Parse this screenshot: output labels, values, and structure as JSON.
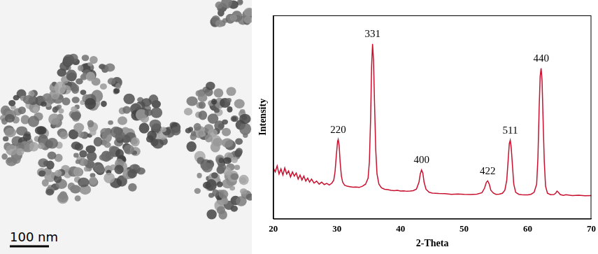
{
  "micrograph": {
    "scale_bar": "100 nm"
  },
  "chart_data": {
    "type": "line",
    "x_label": "2-Theta",
    "y_label": "Intensity",
    "color": "#c8102e",
    "xlim": [
      20,
      70
    ],
    "xticks": [
      20,
      30,
      40,
      50,
      60,
      70
    ],
    "ylim": [
      0,
      100
    ],
    "grid": false,
    "tick_labels": "x",
    "x": [
      20,
      20.3,
      20.6,
      20.9,
      21.2,
      21.5,
      21.8,
      22.1,
      22.4,
      22.7,
      23,
      23.3,
      23.6,
      23.9,
      24.2,
      24.5,
      24.8,
      25.1,
      25.4,
      25.7,
      26,
      26.4,
      26.8,
      27.2,
      27.6,
      28,
      28.4,
      28.8,
      29.2,
      29.5,
      29.7,
      29.9,
      30.1,
      30.2,
      30.35,
      30.5,
      30.7,
      30.9,
      31.2,
      31.6,
      32,
      32.5,
      33,
      33.5,
      34,
      34.5,
      34.9,
      35.1,
      35.3,
      35.45,
      35.6,
      35.75,
      35.9,
      36.1,
      36.3,
      36.6,
      37,
      37.5,
      38,
      38.5,
      39,
      39.5,
      40,
      40.5,
      41,
      41.5,
      42,
      42.5,
      42.9,
      43.1,
      43.3,
      43.5,
      43.7,
      44,
      44.5,
      45,
      46,
      47,
      48,
      49,
      50,
      51,
      52,
      52.8,
      53.2,
      53.5,
      53.7,
      53.95,
      54.2,
      54.6,
      55,
      55.5,
      56,
      56.4,
      56.7,
      56.9,
      57.1,
      57.25,
      57.4,
      57.6,
      57.8,
      58.1,
      58.6,
      59,
      59.5,
      60,
      60.5,
      61,
      61.4,
      61.6,
      61.8,
      61.95,
      62.1,
      62.25,
      62.4,
      62.6,
      62.8,
      63.1,
      63.6,
      64.1,
      64.4,
      64.6,
      64.8,
      65.1,
      65.6,
      66,
      67,
      68,
      69,
      70
    ],
    "values": [
      25,
      23,
      26,
      22,
      24.5,
      21.5,
      25,
      22,
      23.5,
      20.5,
      23,
      21,
      22.5,
      19.5,
      21.5,
      19,
      21,
      18.5,
      20,
      18,
      19.5,
      17.5,
      18.5,
      17,
      18,
      16.8,
      17.4,
      16.6,
      17.5,
      19,
      23,
      31,
      38,
      39,
      36,
      28,
      21,
      18,
      16.5,
      16,
      15.8,
      15.5,
      15.6,
      15.4,
      16,
      17,
      20,
      28,
      50,
      75,
      86,
      78,
      58,
      34,
      22,
      17,
      15.2,
      14.5,
      14.3,
      14,
      13.8,
      14,
      13.6,
      13.7,
      13.5,
      13.6,
      13.8,
      14.6,
      18,
      22,
      24,
      22.5,
      18,
      14.5,
      13,
      12.6,
      12.4,
      12.3,
      12,
      12.2,
      12,
      11.9,
      12.1,
      12.8,
      15,
      18,
      18.6,
      17,
      14,
      12.6,
      12,
      12.1,
      12.5,
      14,
      19,
      28,
      37,
      38.6,
      35,
      26,
      17,
      13,
      12,
      11.8,
      11.7,
      11.7,
      12,
      13,
      17,
      30,
      55,
      70,
      74,
      68,
      50,
      28,
      16,
      12.5,
      11.8,
      11.9,
      12.6,
      13.6,
      13,
      11.9,
      11.5,
      11.8,
      11.4,
      11.6,
      11.3,
      11.4
    ],
    "annotations": [
      {
        "text": "220",
        "x": 30.2,
        "y": 39
      },
      {
        "text": "331",
        "x": 35.6,
        "y": 86
      },
      {
        "text": "400",
        "x": 43.3,
        "y": 24
      },
      {
        "text": "422",
        "x": 53.7,
        "y": 18.6
      },
      {
        "text": "511",
        "x": 57.25,
        "y": 38.6
      },
      {
        "text": "440",
        "x": 62.1,
        "y": 74
      }
    ]
  }
}
